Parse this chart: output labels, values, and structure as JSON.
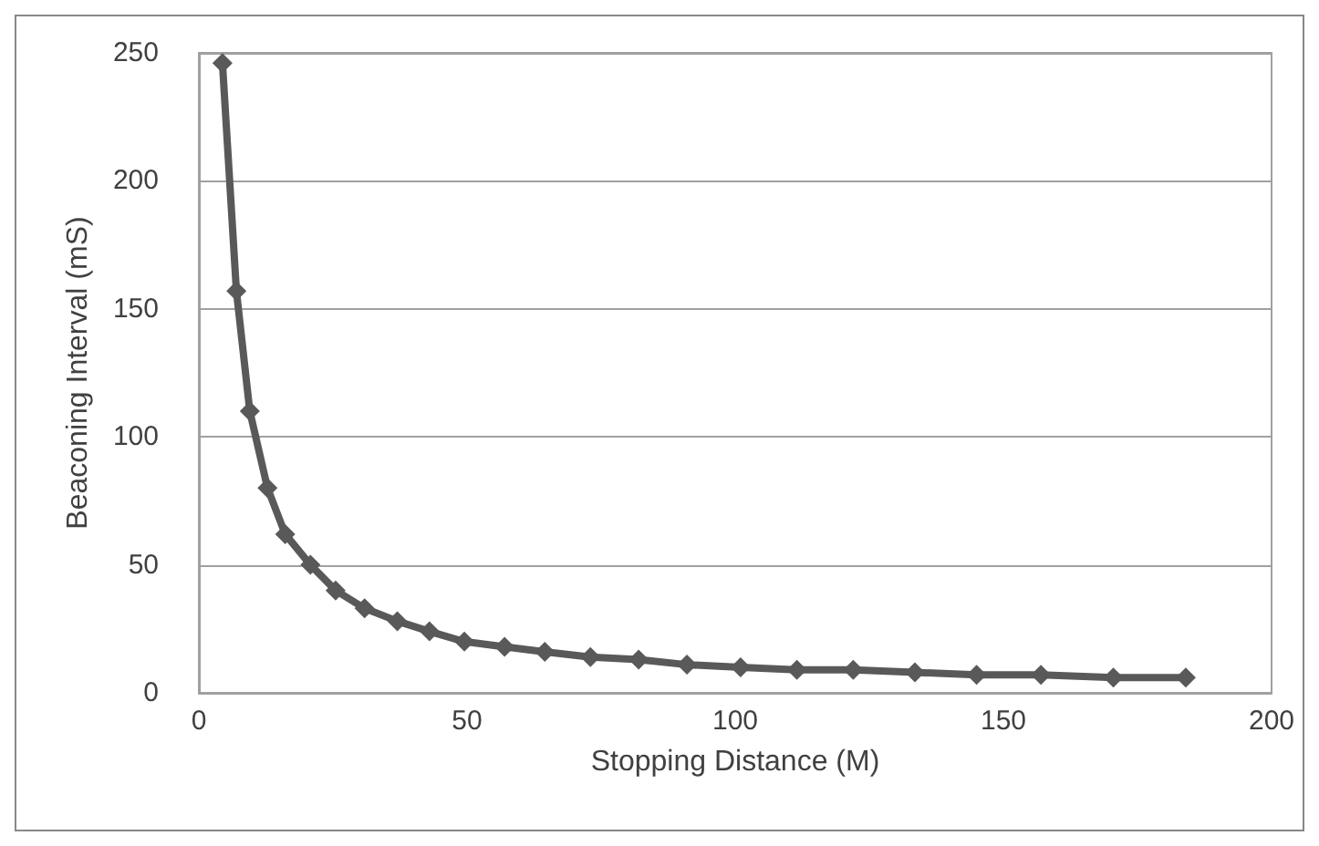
{
  "chart_data": {
    "type": "line",
    "xlabel": "Stopping Distance (M)",
    "ylabel": "Beaconing Interval (mS)",
    "x": [
      4.4,
      7,
      9.5,
      12.8,
      16.1,
      20.8,
      25.5,
      30.9,
      37,
      43,
      49.5,
      57,
      64.5,
      73,
      82,
      91,
      101,
      111.5,
      122,
      133.5,
      145,
      157,
      170.5,
      184
    ],
    "series": [
      {
        "color": "#595959",
        "values": [
          246,
          157,
          110,
          80,
          62,
          50,
          40,
          33,
          28,
          24,
          20,
          18,
          16,
          14,
          13,
          11,
          10,
          9,
          9,
          8,
          7,
          7,
          6,
          6
        ]
      }
    ],
    "xlim": [
      0,
      200
    ],
    "xticks": [
      0,
      50,
      100,
      150,
      200
    ],
    "ylim": [
      0,
      250
    ],
    "yticks": [
      0,
      50,
      100,
      150,
      200,
      250
    ],
    "grid": "y",
    "marker": "diamond",
    "line_style": "solid"
  }
}
